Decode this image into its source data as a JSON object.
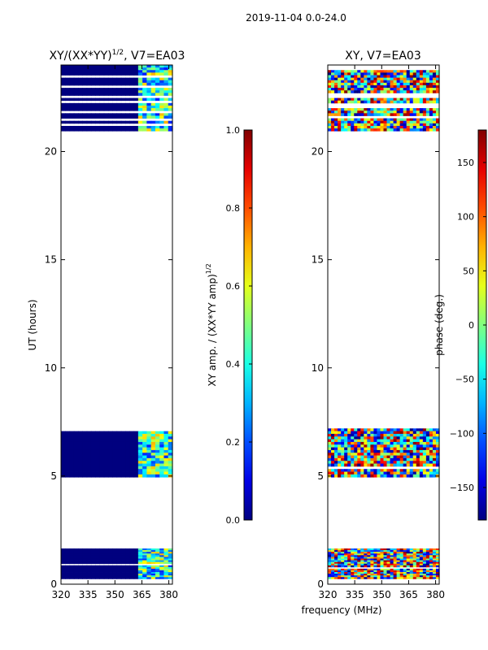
{
  "figure": {
    "suptitle": "2019-11-04 0.0-24.0",
    "shared_xlabel": "frequency (MHz)"
  },
  "chart_data": [
    {
      "type": "heatmap",
      "title": "XY/(XX*YY)",
      "title_sup": "1/2",
      "title_tail": ", V7=EA03",
      "xlabel": "",
      "ylabel": "UT (hours)",
      "xlim": [
        320,
        382
      ],
      "ylim": [
        0,
        24
      ],
      "xticks": [
        320,
        335,
        350,
        365,
        380
      ],
      "yticks": [
        0,
        5,
        10,
        15,
        20
      ],
      "colormap": "jet",
      "background_value_color": "#00007f",
      "data_bands_hours": [
        [
          0.25,
          1.65
        ],
        [
          4.95,
          7.2
        ],
        [
          20.95,
          24.0
        ]
      ],
      "bright_frequency_range_mhz": [
        362,
        382
      ],
      "colorbar": {
        "label": "XY amp. / (XX*YY amp)",
        "label_sup": "1/2",
        "range": [
          0.0,
          1.0
        ],
        "ticks": [
          "0.0",
          "0.2",
          "0.4",
          "0.6",
          "0.8",
          "1.0"
        ]
      }
    },
    {
      "type": "heatmap",
      "title": "XY, V7=EA03",
      "xlabel": "frequency (MHz)",
      "ylabel": "",
      "xlim": [
        320,
        382
      ],
      "ylim": [
        0,
        24
      ],
      "xticks": [
        320,
        335,
        350,
        365,
        380
      ],
      "yticks": [
        0,
        5,
        10,
        15,
        20
      ],
      "colormap": "jet",
      "data_bands_hours": [
        [
          0.25,
          1.65
        ],
        [
          4.95,
          7.2
        ],
        [
          20.95,
          24.0
        ]
      ],
      "colorbar": {
        "label": "phase (deg.)",
        "range": [
          -180,
          180
        ],
        "ticks": [
          "−150",
          "−100",
          "−50",
          "0",
          "50",
          "100",
          "150"
        ]
      }
    }
  ],
  "colors": {
    "axes": "#000000",
    "background": "#ffffff"
  }
}
